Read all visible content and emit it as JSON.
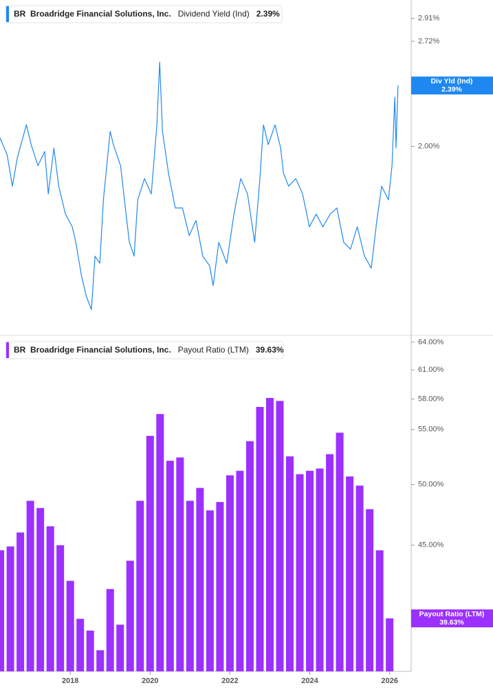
{
  "chart_data": [
    {
      "type": "line",
      "ticker": "BR",
      "company": "Broadridge Financial Solutions, Inc.",
      "log_scale": true,
      "xlim": [
        2016.24,
        2026.54
      ],
      "ylim": [
        1.15,
        3.07
      ],
      "yticks": [
        {
          "value": 2.91,
          "label": "2.91%"
        },
        {
          "value": 2.72,
          "label": "2.72%"
        },
        {
          "value": 2.0,
          "label": "2.00%"
        }
      ],
      "latest_name": "Div Yld (Ind)",
      "latest": {
        "value": 2.39,
        "label": "2.39%"
      },
      "x": [
        2016.24,
        2016.42,
        2016.55,
        2016.67,
        2016.9,
        2017.02,
        2017.19,
        2017.36,
        2017.45,
        2017.59,
        2017.71,
        2017.88,
        2018.05,
        2018.14,
        2018.28,
        2018.4,
        2018.53,
        2018.62,
        2018.74,
        2018.83,
        2019.0,
        2019.08,
        2019.26,
        2019.38,
        2019.48,
        2019.6,
        2019.69,
        2019.86,
        2020.03,
        2020.17,
        2020.24,
        2020.31,
        2020.46,
        2020.63,
        2020.81,
        2020.98,
        2021.15,
        2021.32,
        2021.49,
        2021.58,
        2021.72,
        2021.92,
        2022.1,
        2022.27,
        2022.44,
        2022.62,
        2022.75,
        2022.84,
        2022.96,
        2023.13,
        2023.27,
        2023.34,
        2023.47,
        2023.65,
        2023.82,
        2023.99,
        2024.16,
        2024.33,
        2024.51,
        2024.68,
        2024.85,
        2025.02,
        2025.19,
        2025.37,
        2025.54,
        2025.68,
        2025.8,
        2025.97,
        2026.06,
        2026.13,
        2026.16,
        2026.21
      ],
      "series": [
        {
          "name": "Dividend Yield (Ind)",
          "color": "#1e88f0",
          "values": [
            2.05,
            1.95,
            1.78,
            1.93,
            2.13,
            2.01,
            1.89,
            1.97,
            1.74,
            1.99,
            1.78,
            1.64,
            1.58,
            1.51,
            1.37,
            1.29,
            1.24,
            1.45,
            1.42,
            1.71,
            2.09,
            2.01,
            1.89,
            1.67,
            1.51,
            1.45,
            1.71,
            1.82,
            1.74,
            2.13,
            2.56,
            2.09,
            1.85,
            1.67,
            1.67,
            1.54,
            1.61,
            1.45,
            1.41,
            1.33,
            1.51,
            1.42,
            1.64,
            1.82,
            1.74,
            1.51,
            1.82,
            2.13,
            2.01,
            2.13,
            1.99,
            1.85,
            1.78,
            1.82,
            1.74,
            1.58,
            1.64,
            1.58,
            1.64,
            1.67,
            1.51,
            1.48,
            1.58,
            1.45,
            1.4,
            1.61,
            1.78,
            1.71,
            1.89,
            2.31,
            1.99,
            2.39
          ]
        }
      ]
    },
    {
      "type": "bar",
      "ticker": "BR",
      "company": "Broadridge Financial Solutions, Inc.",
      "log_scale": true,
      "xlim": [
        2016.24,
        2026.54
      ],
      "ylim": [
        36.15,
        64.77
      ],
      "xticks": [
        2018,
        2020,
        2022,
        2024,
        2026
      ],
      "yticks": [
        {
          "value": 64,
          "label": "64.00%"
        },
        {
          "value": 61,
          "label": "61.00%"
        },
        {
          "value": 58,
          "label": "58.00%"
        },
        {
          "value": 55,
          "label": "55.00%"
        },
        {
          "value": 50,
          "label": "50.00%"
        },
        {
          "value": 45,
          "label": "45.00%"
        }
      ],
      "latest_name": "Payout Ratio (LTM)",
      "latest": {
        "value": 39.63,
        "label": "39.63%"
      },
      "x": [
        2016.25,
        2016.5,
        2016.75,
        2017,
        2017.25,
        2017.5,
        2017.75,
        2018,
        2018.25,
        2018.5,
        2018.75,
        2019,
        2019.25,
        2019.5,
        2019.75,
        2020,
        2020.25,
        2020.5,
        2020.75,
        2021,
        2021.25,
        2021.5,
        2021.75,
        2022,
        2022.25,
        2022.5,
        2022.75,
        2023,
        2023.25,
        2023.5,
        2023.75,
        2024,
        2024.25,
        2024.5,
        2024.75,
        2025,
        2025.25,
        2025.5,
        2025.75,
        2026
      ],
      "series": [
        {
          "name": "Payout Ratio (LTM)",
          "color": "#9b30ff",
          "values": [
            44.6,
            44.9,
            46.0,
            48.6,
            48.0,
            46.5,
            45.0,
            42.3,
            39.6,
            38.8,
            37.5,
            41.7,
            39.2,
            43.8,
            48.6,
            54.4,
            56.5,
            52.1,
            52.4,
            48.6,
            49.7,
            47.8,
            48.5,
            50.8,
            51.2,
            53.9,
            57.2,
            58.1,
            57.8,
            52.5,
            50.9,
            51.2,
            51.4,
            52.7,
            54.7,
            50.7,
            49.9,
            47.9,
            44.6,
            39.63
          ]
        }
      ]
    }
  ]
}
